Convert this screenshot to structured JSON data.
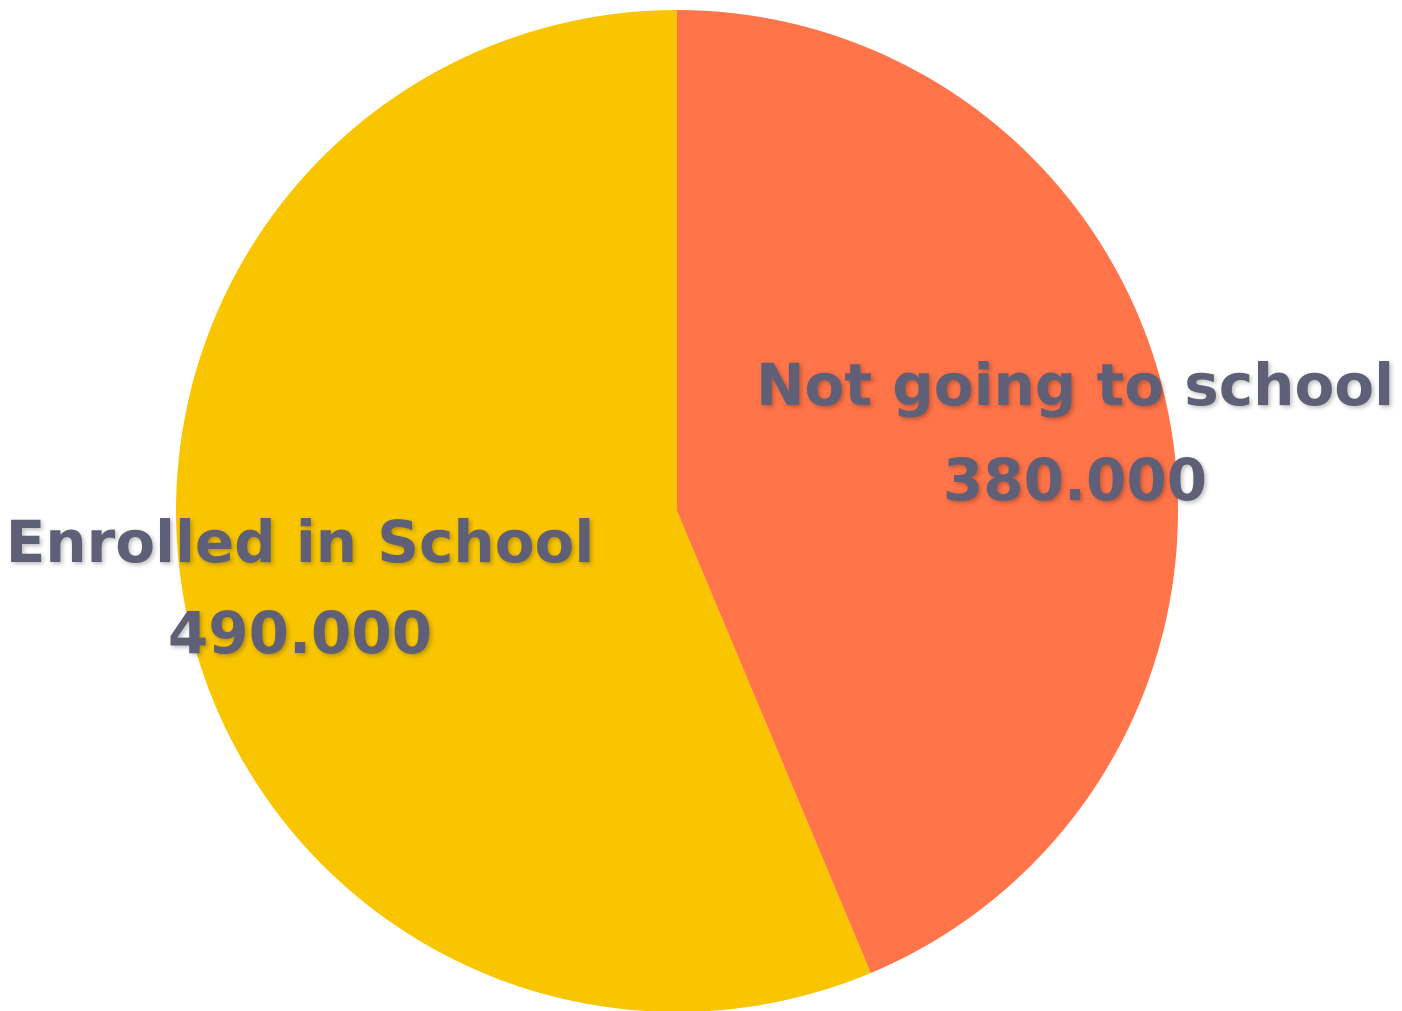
{
  "chart_data": {
    "type": "pie",
    "slices": [
      {
        "name": "Not going to school",
        "value": 380000,
        "value_label": "380.000",
        "color": "#FF7449"
      },
      {
        "name": "Enrolled in School",
        "value": 490000,
        "value_label": "490.000",
        "color": "#F8C500"
      }
    ],
    "label_color": "#5F5F77",
    "start": "12 o'clock",
    "direction": "clockwise",
    "legend": "none"
  }
}
